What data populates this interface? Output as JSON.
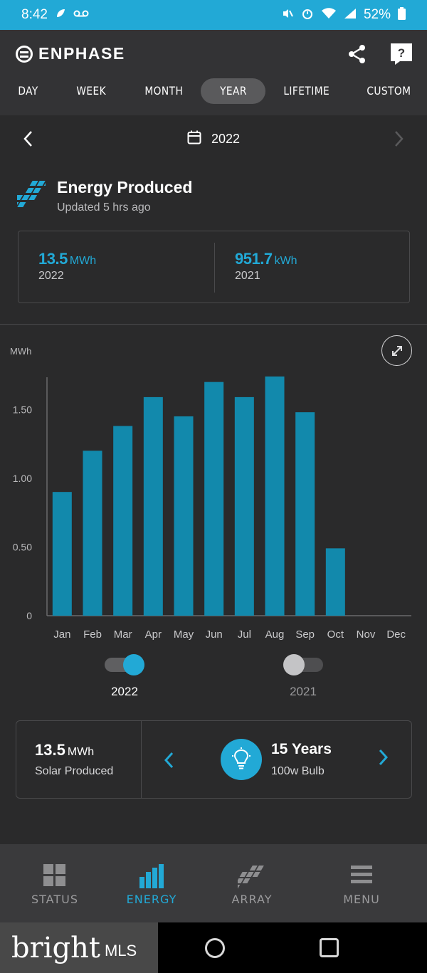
{
  "status_bar": {
    "time": "8:42",
    "battery": "52%"
  },
  "app": {
    "brand": "ENPHASE",
    "tabs": [
      {
        "label": "DAY"
      },
      {
        "label": "WEEK"
      },
      {
        "label": "MONTH"
      },
      {
        "label": "YEAR",
        "active": true
      },
      {
        "label": "LIFETIME"
      },
      {
        "label": "CUSTOM"
      }
    ]
  },
  "date_nav": {
    "label": "2022"
  },
  "energy": {
    "title": "Energy Produced",
    "updated": "Updated 5 hrs ago",
    "current": {
      "value": "13.5",
      "unit": "MWh",
      "year": "2022"
    },
    "previous": {
      "value": "951.7",
      "unit": "kWh",
      "year": "2021"
    }
  },
  "chart": {
    "unit_label": "MWh"
  },
  "chart_data": {
    "type": "bar",
    "ylabel": "MWh",
    "ylim": [
      0,
      1.75
    ],
    "yticks": [
      "0",
      "0.50",
      "1.00",
      "1.50"
    ],
    "ytick_values": [
      0,
      0.5,
      1.0,
      1.5
    ],
    "categories": [
      "Jan",
      "Feb",
      "Mar",
      "Apr",
      "May",
      "Jun",
      "Jul",
      "Aug",
      "Sep",
      "Oct",
      "Nov",
      "Dec"
    ],
    "series": [
      {
        "name": "2022",
        "values": [
          0.9,
          1.2,
          1.38,
          1.59,
          1.45,
          1.7,
          1.59,
          1.74,
          1.48,
          0.49,
          0,
          0
        ]
      }
    ],
    "bar_color": "#1289ac",
    "grid": false
  },
  "legend": {
    "items": [
      {
        "label": "2022",
        "enabled": true,
        "color": "#22a9d6"
      },
      {
        "label": "2021",
        "enabled": false,
        "color": "#c4c4c6"
      }
    ]
  },
  "equivalency": {
    "solar_value": "13.5",
    "solar_unit": "MWh",
    "solar_label": "Solar Produced",
    "value": "15 Years",
    "label": "100w Bulb"
  },
  "bottom_nav": {
    "items": [
      {
        "label": "STATUS",
        "active": false
      },
      {
        "label": "ENERGY",
        "active": true
      },
      {
        "label": "ARRAY",
        "active": false
      },
      {
        "label": "MENU",
        "active": false
      }
    ]
  },
  "watermark": {
    "brand": "bright",
    "suffix": "MLS"
  },
  "colors": {
    "accent": "#22a9d6",
    "background": "#2a2a2b",
    "inactive": "#b9b9bb"
  }
}
